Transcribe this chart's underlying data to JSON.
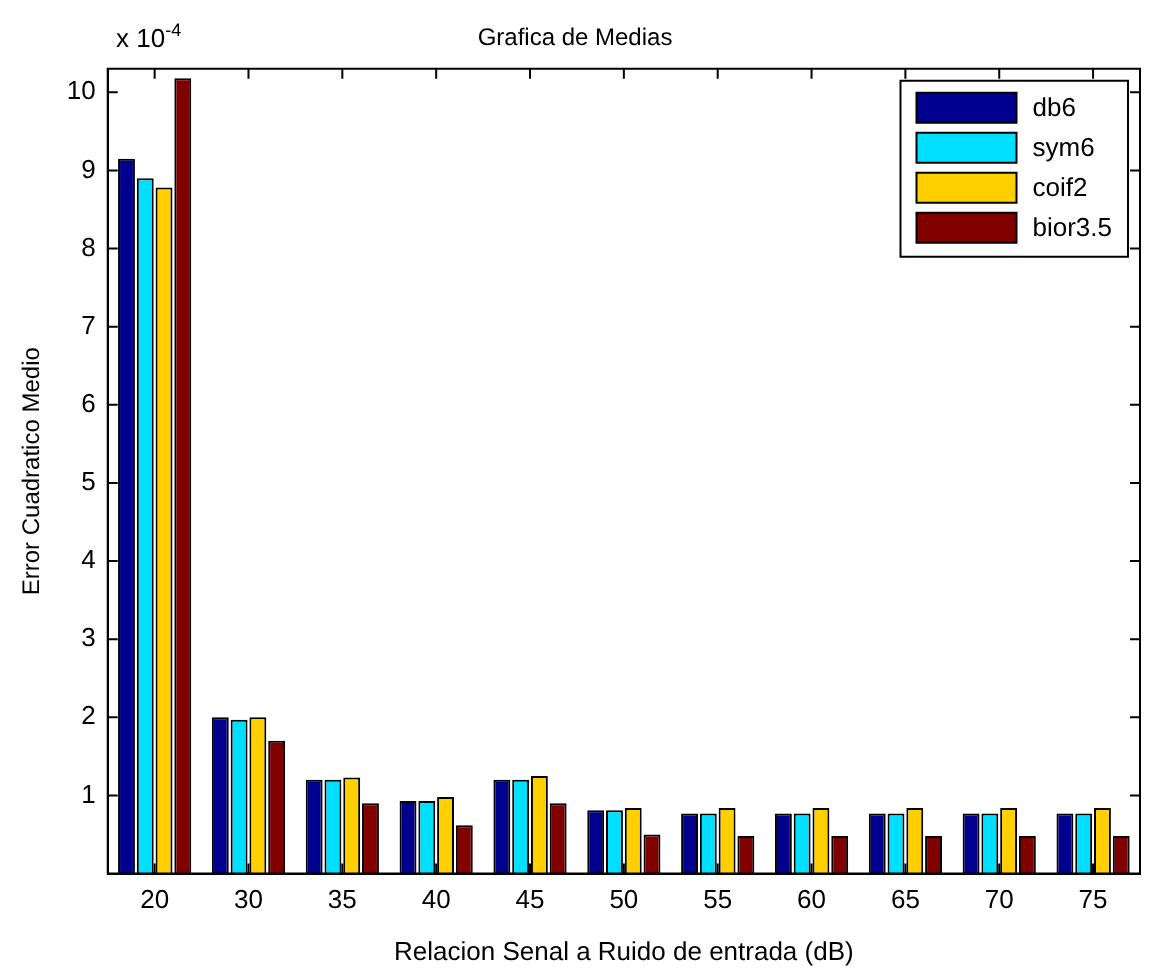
{
  "chart_data": {
    "type": "bar",
    "title": "Grafica de Medias",
    "xlabel": "Relacion Senal a Ruido de entrada (dB)",
    "ylabel": "Error Cuadratico Medio",
    "annotations": [
      "x 10$^{-4}$"
    ],
    "categories": [
      "20",
      "30",
      "35",
      "40",
      "45",
      "50",
      "55",
      "60",
      "65",
      "70",
      "75"
    ],
    "series": [
      {
        "name": "db6",
        "color": "#00008f",
        "values": [
          9.15,
          2.0,
          1.2,
          0.93,
          1.2,
          0.81,
          0.77,
          0.77,
          0.77,
          0.77,
          0.77
        ]
      },
      {
        "name": "sym6",
        "color": "#00dfff",
        "values": [
          8.9,
          1.97,
          1.2,
          0.93,
          1.2,
          0.81,
          0.77,
          0.77,
          0.77,
          0.77,
          0.77
        ]
      },
      {
        "name": "coif2",
        "color": "#ffcf00",
        "values": [
          8.78,
          2.0,
          1.23,
          0.98,
          1.25,
          0.84,
          0.84,
          0.84,
          0.84,
          0.84,
          0.84
        ]
      },
      {
        "name": "bior3.5",
        "color": "#800000",
        "values": [
          10.18,
          1.7,
          0.9,
          0.62,
          0.9,
          0.5,
          0.48,
          0.48,
          0.48,
          0.48,
          0.48
        ]
      }
    ],
    "ylim": [
      0,
      10.3
    ],
    "yticks": [
      1,
      2,
      3,
      4,
      5,
      6,
      7,
      8,
      9,
      10
    ],
    "grid": false,
    "legend": "top right"
  }
}
